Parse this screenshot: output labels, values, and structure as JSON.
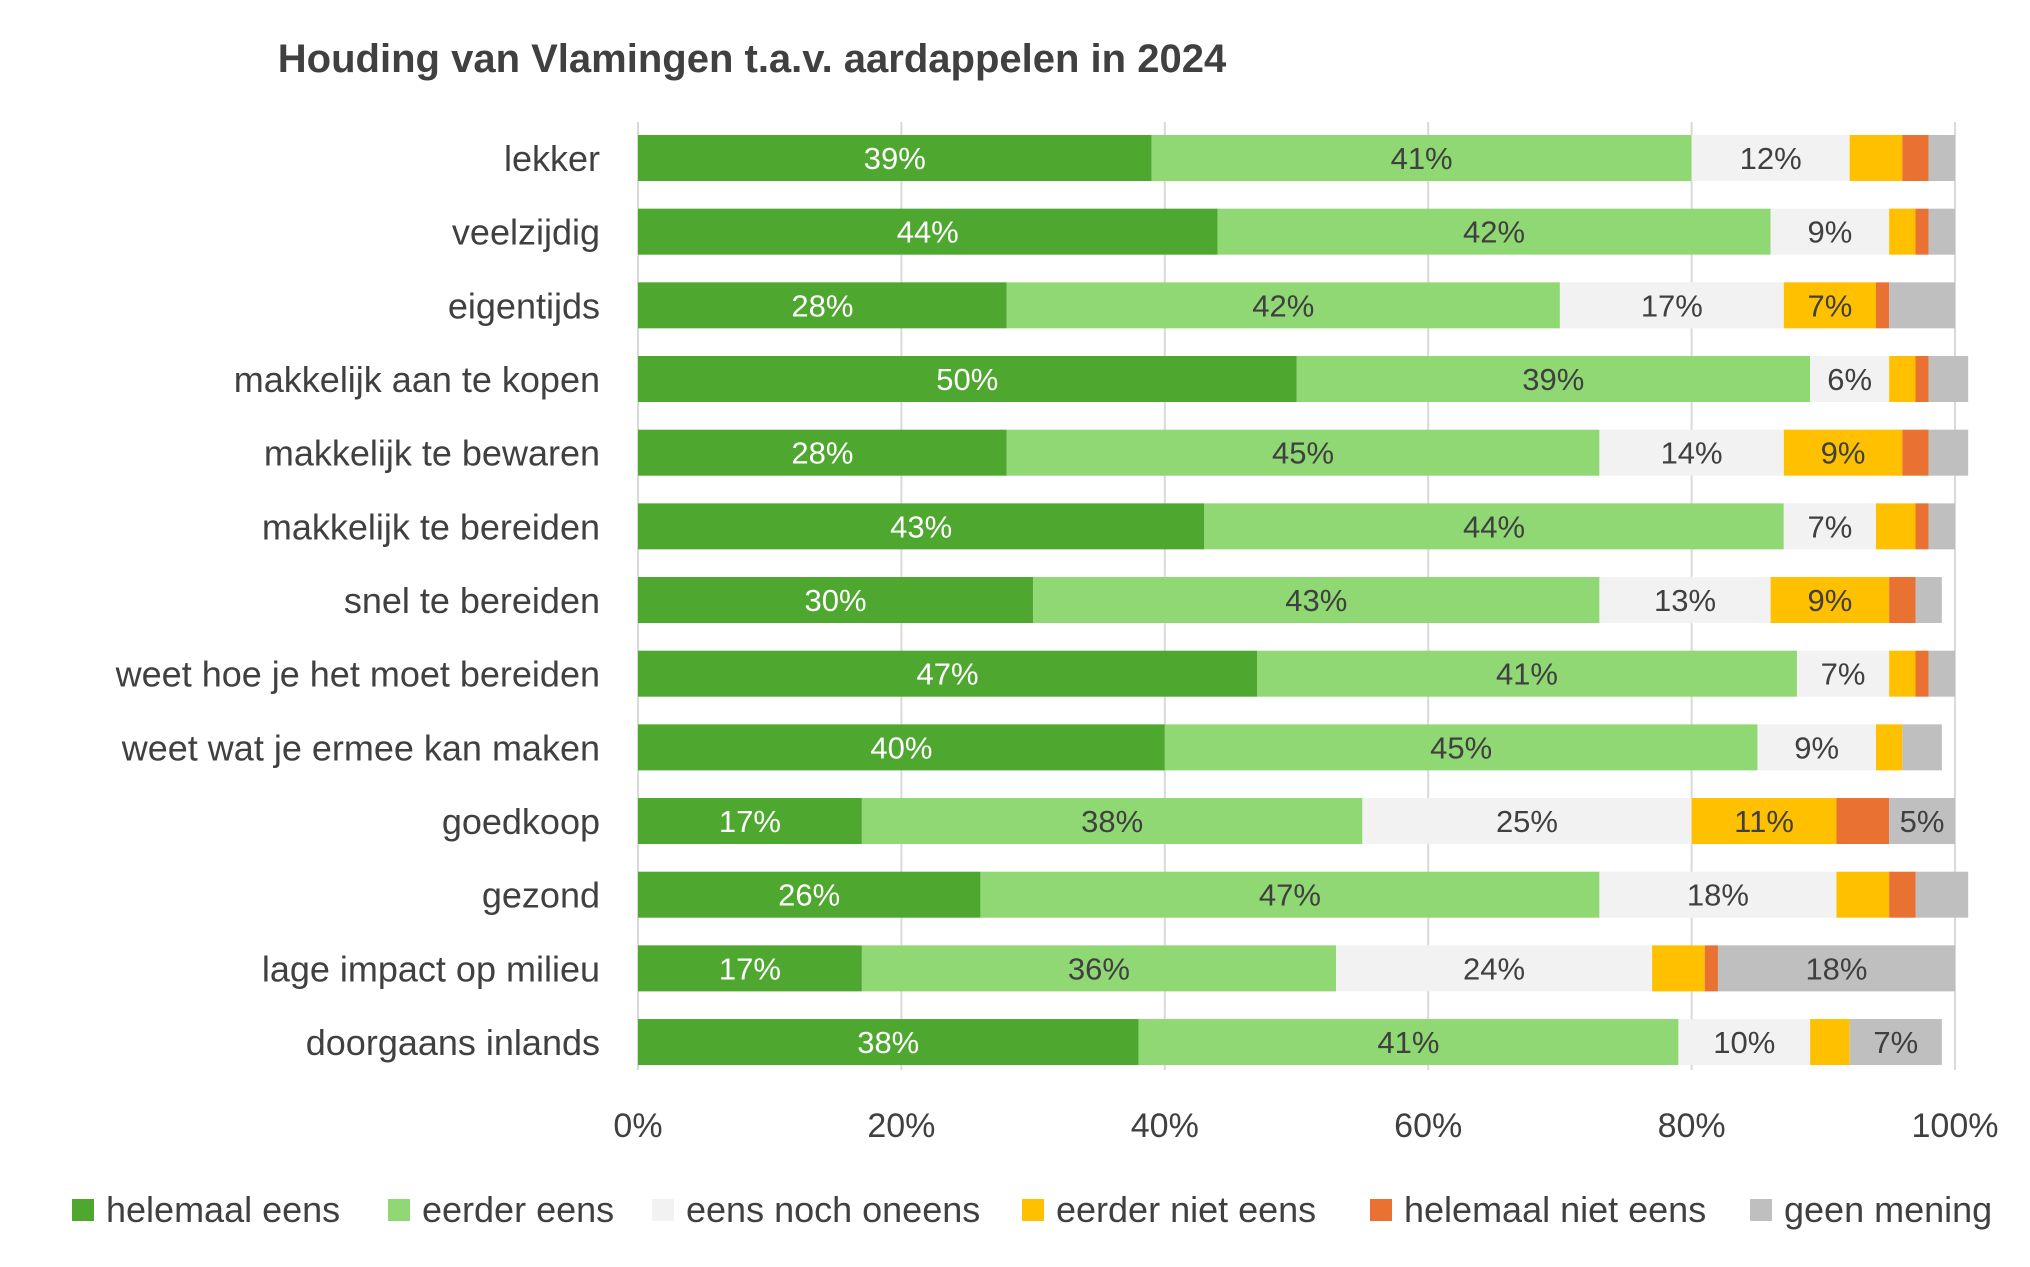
{
  "chart_data": {
    "type": "bar",
    "orientation": "horizontal",
    "stacked": true,
    "title": "Houding van Vlamingen t.a.v. aardappelen in 2024",
    "xlabel": "",
    "ylabel": "",
    "xlim": [
      0,
      100
    ],
    "x_ticks": [
      "0%",
      "20%",
      "40%",
      "60%",
      "80%",
      "100%"
    ],
    "grid": true,
    "legend_position": "bottom",
    "categories": [
      "lekker",
      "veelzijdig",
      "eigentijds",
      "makkelijk aan te kopen",
      "makkelijk te bewaren",
      "makkelijk te bereiden",
      "snel te bereiden",
      "weet hoe je het moet bereiden",
      "weet wat je ermee kan maken",
      "goedkoop",
      "gezond",
      "lage impact op milieu",
      "doorgaans inlands"
    ],
    "series": [
      {
        "name": "helemaal eens",
        "color": "#4ea72e",
        "label_color": "#ffffff",
        "values": [
          39,
          44,
          28,
          50,
          28,
          43,
          30,
          47,
          40,
          17,
          26,
          17,
          38
        ],
        "labels": [
          "39%",
          "44%",
          "28%",
          "50%",
          "28%",
          "43%",
          "30%",
          "47%",
          "40%",
          "17%",
          "26%",
          "17%",
          "38%"
        ]
      },
      {
        "name": "eerder eens",
        "color": "#8fd873",
        "label_color": "#404040",
        "values": [
          41,
          42,
          42,
          39,
          45,
          44,
          43,
          41,
          45,
          38,
          47,
          36,
          41
        ],
        "labels": [
          "41%",
          "42%",
          "42%",
          "39%",
          "45%",
          "44%",
          "43%",
          "41%",
          "45%",
          "38%",
          "47%",
          "36%",
          "41%"
        ]
      },
      {
        "name": "eens noch oneens",
        "color": "#f2f2f2",
        "label_color": "#404040",
        "values": [
          12,
          9,
          17,
          6,
          14,
          7,
          13,
          7,
          9,
          25,
          18,
          24,
          10
        ],
        "labels": [
          "12%",
          "9%",
          "17%",
          "6%",
          "14%",
          "7%",
          "13%",
          "7%",
          "9%",
          "25%",
          "18%",
          "24%",
          "10%"
        ]
      },
      {
        "name": "eerder niet eens",
        "color": "#ffc000",
        "label_color": "#404040",
        "values": [
          4,
          2,
          7,
          2,
          9,
          3,
          9,
          2,
          2,
          11,
          4,
          4,
          3
        ],
        "labels": [
          "",
          "",
          "7%",
          "",
          "9%",
          "",
          "9%",
          "",
          "",
          "11%",
          "",
          "",
          ""
        ]
      },
      {
        "name": "helemaal niet eens",
        "color": "#e97132",
        "label_color": "#404040",
        "values": [
          2,
          1,
          1,
          1,
          2,
          1,
          2,
          1,
          0,
          4,
          2,
          1,
          0
        ],
        "labels": [
          "",
          "",
          "",
          "",
          "",
          "",
          "",
          "",
          "",
          "",
          "",
          "",
          ""
        ]
      },
      {
        "name": "geen mening",
        "color": "#bfbfbf",
        "label_color": "#404040",
        "values": [
          2,
          2,
          5,
          3,
          3,
          2,
          2,
          2,
          3,
          5,
          4,
          18,
          7
        ],
        "labels": [
          "",
          "",
          "",
          "",
          "",
          "",
          "",
          "",
          "",
          "5%",
          "",
          "18%",
          "7%"
        ]
      }
    ]
  }
}
